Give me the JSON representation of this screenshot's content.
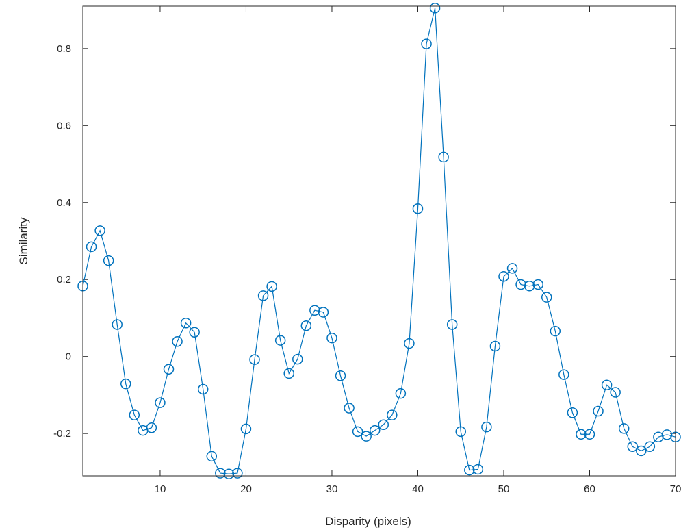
{
  "chart_data": {
    "type": "line",
    "title": "",
    "xlabel": "Disparity (pixels)",
    "ylabel": "Similarity",
    "xlim": [
      1,
      70
    ],
    "ylim": [
      -0.31,
      0.91
    ],
    "xticks": [
      10,
      20,
      30,
      40,
      50,
      60,
      70
    ],
    "xtick_labels": [
      "10",
      "20",
      "30",
      "40",
      "50",
      "60",
      "70"
    ],
    "yticks": [
      -0.2,
      0,
      0.2,
      0.4,
      0.6,
      0.8
    ],
    "ytick_labels": [
      "-0.2",
      "0",
      "0.2",
      "0.4",
      "0.6",
      "0.8"
    ],
    "grid": false,
    "marker": "circle",
    "color": "#0072bd",
    "series": [
      {
        "x": [
          1,
          2,
          3,
          4,
          5,
          6,
          7,
          8,
          9,
          10,
          11,
          12,
          13,
          14,
          15,
          16,
          17,
          18,
          19,
          20,
          21,
          22,
          23,
          24,
          25,
          26,
          27,
          28,
          29,
          30,
          31,
          32,
          33,
          34,
          35,
          36,
          37,
          38,
          39,
          40,
          41,
          42,
          43,
          44,
          45,
          46,
          47,
          48,
          49,
          50,
          51,
          52,
          53,
          54,
          55,
          56,
          57,
          58,
          59,
          60,
          61,
          62,
          63,
          64,
          65,
          66,
          67,
          68,
          69,
          70
        ],
        "y": [
          0.183,
          0.285,
          0.327,
          0.249,
          0.083,
          -0.071,
          -0.152,
          -0.192,
          -0.185,
          -0.12,
          -0.033,
          0.039,
          0.087,
          0.063,
          -0.085,
          -0.259,
          -0.303,
          -0.305,
          -0.303,
          -0.188,
          -0.008,
          0.158,
          0.182,
          0.042,
          -0.044,
          -0.007,
          0.08,
          0.12,
          0.115,
          0.048,
          -0.05,
          -0.134,
          -0.195,
          -0.207,
          -0.192,
          -0.177,
          -0.152,
          -0.096,
          0.034,
          0.384,
          0.812,
          0.905,
          0.518,
          0.083,
          -0.195,
          -0.295,
          -0.293,
          -0.183,
          0.027,
          0.208,
          0.229,
          0.187,
          0.183,
          0.187,
          0.154,
          0.066,
          -0.047,
          -0.146,
          -0.202,
          -0.202,
          -0.142,
          -0.074,
          -0.093,
          -0.187,
          -0.234,
          -0.245,
          -0.234,
          -0.209,
          -0.203,
          -0.209
        ]
      }
    ]
  }
}
